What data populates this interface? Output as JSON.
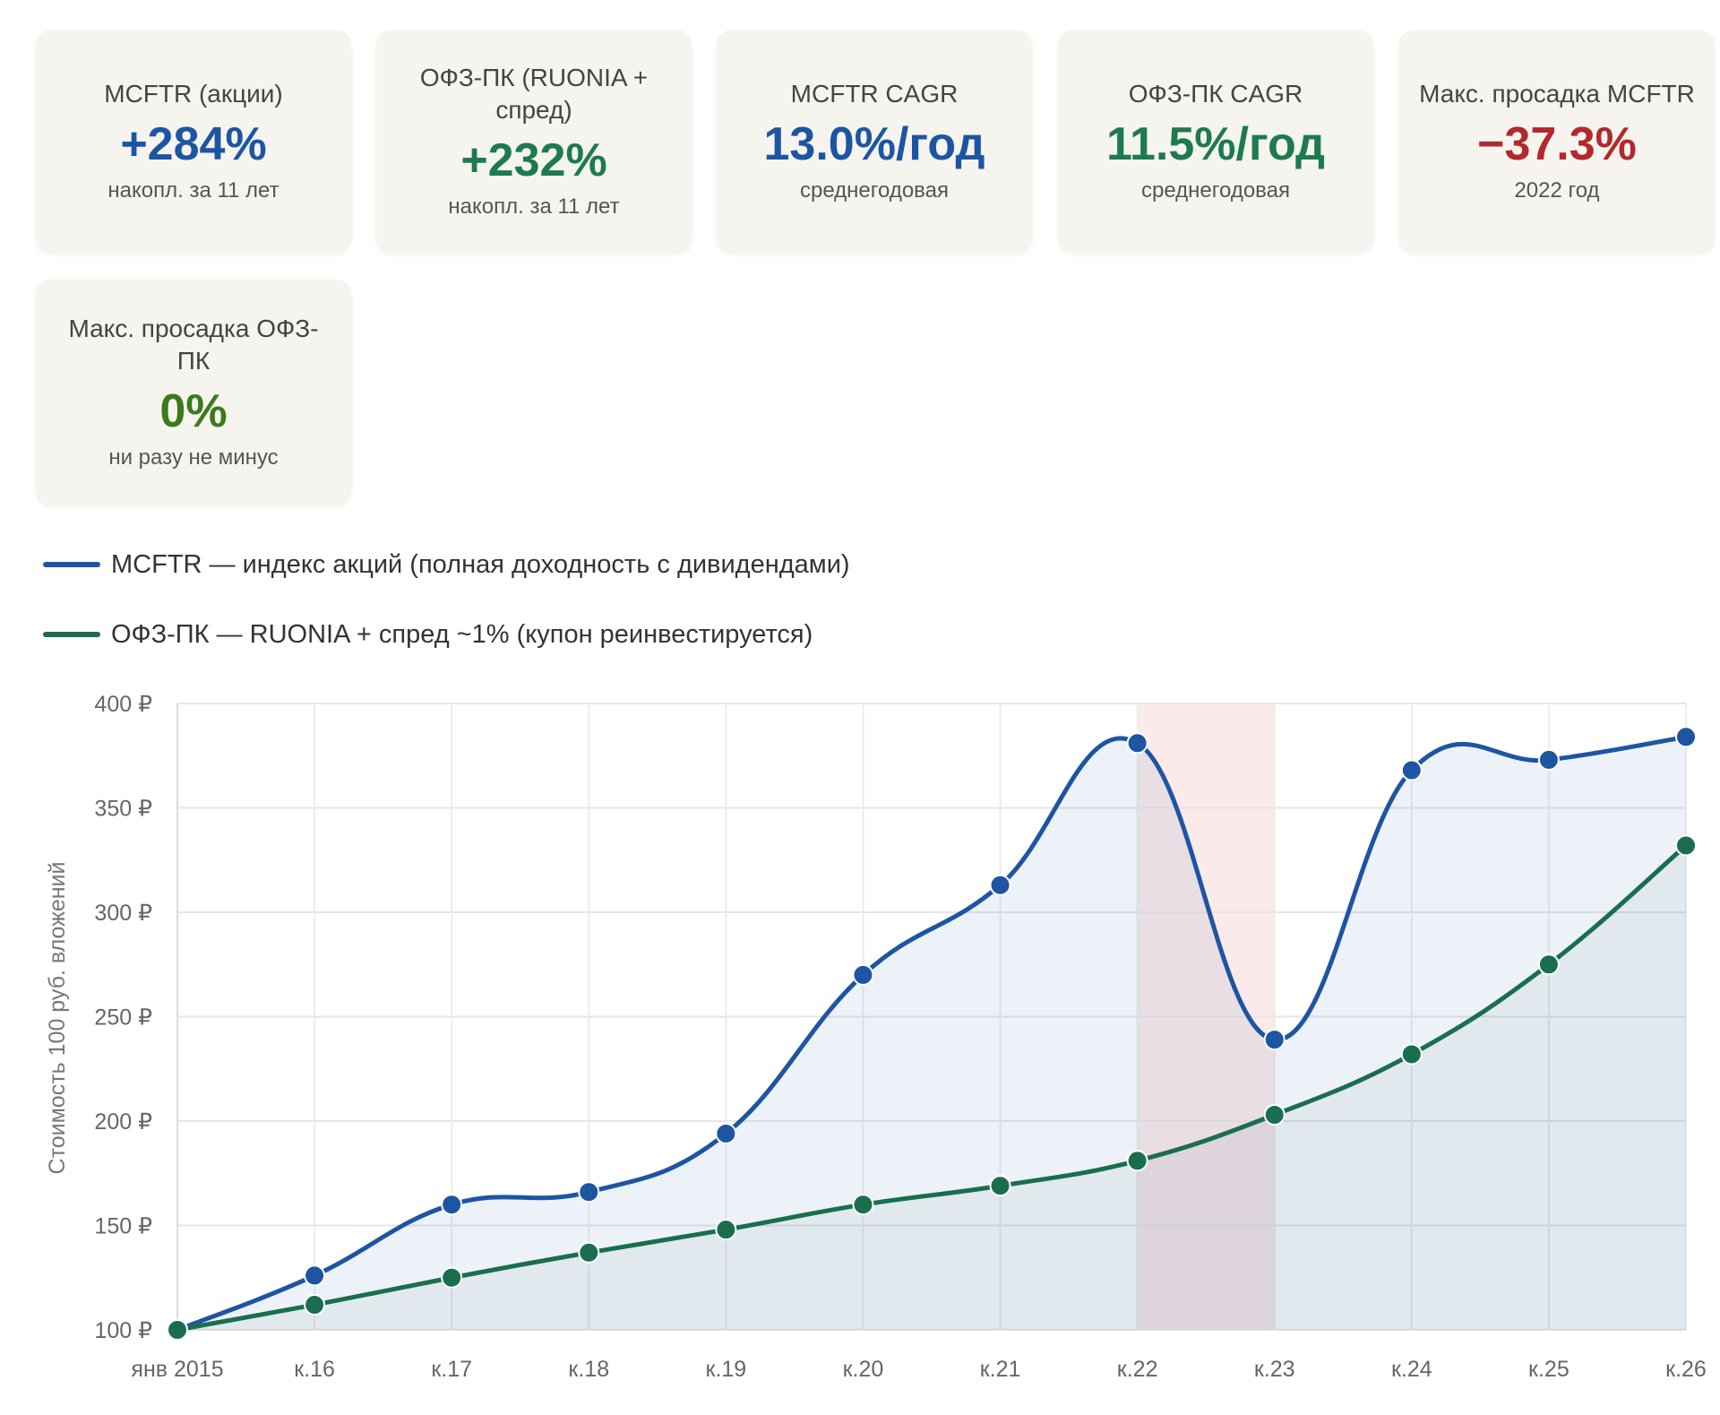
{
  "cards": [
    {
      "label": "MCFTR (акции)",
      "value": "+284%",
      "sub": "накопл. за 11 лет",
      "color": "#1d55a3"
    },
    {
      "label": "ОФЗ-ПК (RUONIA + спред)",
      "value": "+232%",
      "sub": "накопл. за 11 лет",
      "color": "#1e7a4f"
    },
    {
      "label": "MCFTR CAGR",
      "value": "13.0%/год",
      "sub": "среднегодовая",
      "color": "#1d55a3"
    },
    {
      "label": "ОФЗ-ПК CAGR",
      "value": "11.5%/год",
      "sub": "среднегодовая",
      "color": "#1e7a4f"
    },
    {
      "label": "Макс. просадка MCFTR",
      "value": "−37.3%",
      "sub": "2022 год",
      "color": "#b3282d"
    },
    {
      "label": "Макс. просадка ОФЗ-ПК",
      "value": "0%",
      "sub": "ни разу не минус",
      "color": "#3d7a1b"
    }
  ],
  "legend": [
    {
      "label": "MCFTR — индекс акций (полная доходность с дивидендами)",
      "color": "#1d55a3"
    },
    {
      "label": "ОФЗ-ПК — RUONIA + спред ~1% (купон реинвестируется)",
      "color": "#1a6e4e"
    }
  ],
  "chart_data": {
    "type": "line",
    "categories": [
      "янв 2015",
      "к.16",
      "к.17",
      "к.18",
      "к.19",
      "к.20",
      "к.21",
      "к.22",
      "к.23",
      "к.24",
      "к.25",
      "к.26"
    ],
    "series": [
      {
        "name": "MCFTR — индекс акций (полная доходность с дивидендами)",
        "color": "#1d55a3",
        "values": [
          100,
          126,
          160,
          166,
          194,
          270,
          313,
          381,
          239,
          368,
          373,
          384
        ]
      },
      {
        "name": "ОФЗ-ПК — RUONIA + спред ~1% (купон реинвестируется)",
        "color": "#1a6e4e",
        "values": [
          100,
          112,
          125,
          137,
          148,
          160,
          169,
          181,
          203,
          232,
          275,
          332
        ]
      }
    ],
    "ylabel": "Стоимость 100 руб. вложений",
    "ylim": [
      100,
      400
    ],
    "yticks": [
      100,
      150,
      200,
      250,
      300,
      350,
      400
    ],
    "ytick_suffix": " ₽",
    "highlight_range": [
      "к.22",
      "к.23"
    ],
    "highlight_color": "#fbeaea",
    "grid": true
  }
}
